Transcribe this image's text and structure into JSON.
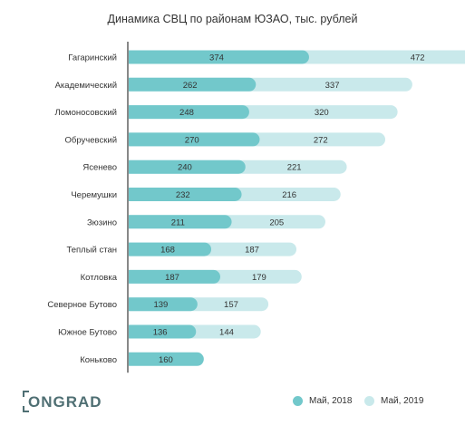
{
  "chart_data": {
    "type": "bar",
    "orientation": "horizontal",
    "title": "Динамика СВЦ по районам ЮЗАО, тыс. рублей",
    "categories": [
      "Гагаринский",
      "Академический",
      "Ломоносовский",
      "Обручевский",
      "Ясенево",
      "Черемушки",
      "Зюзино",
      "Теплый стан",
      "Котловка",
      "Северное Бутово",
      "Южное Бутово",
      "Коньково"
    ],
    "series": [
      {
        "name": "Май, 2018",
        "values": [
          374,
          262,
          248,
          270,
          240,
          232,
          211,
          168,
          187,
          139,
          136,
          160
        ],
        "color": "#72c8cb"
      },
      {
        "name": "Май, 2019",
        "values": [
          472,
          337,
          320,
          272,
          221,
          216,
          205,
          187,
          179,
          157,
          144,
          null
        ],
        "color": "#c9e9eb"
      }
    ],
    "legend": "bottom-right"
  },
  "brand": {
    "logo_text": "ONGRAD",
    "color": "#4f6f73"
  },
  "colors": {
    "axis": "#888888"
  }
}
